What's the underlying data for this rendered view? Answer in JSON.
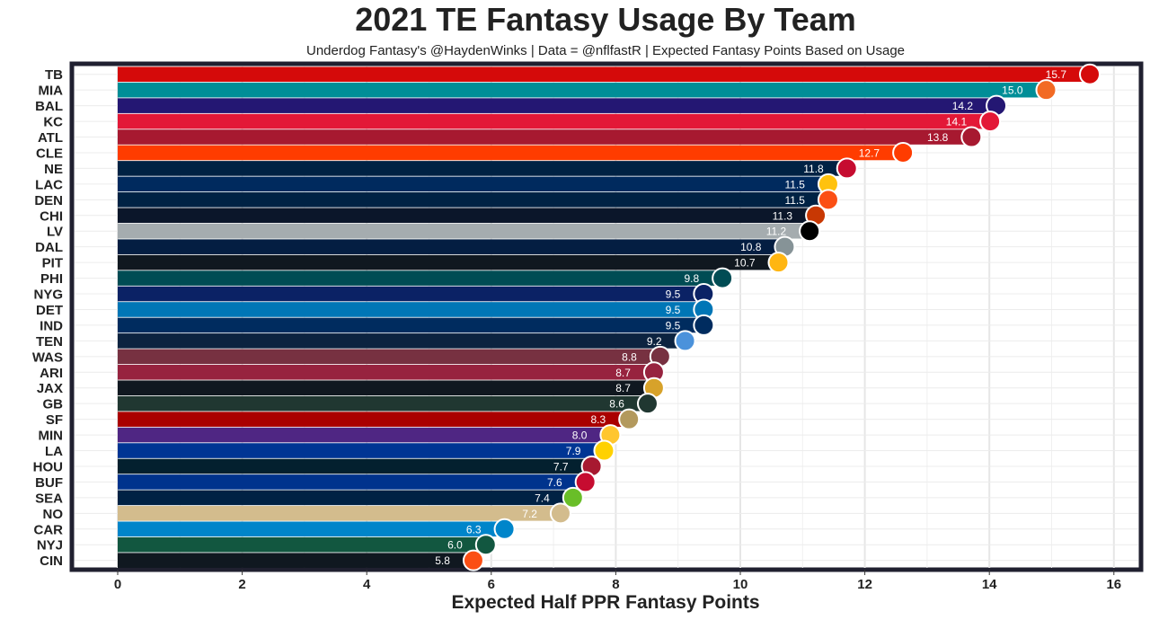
{
  "chart_data": {
    "type": "bar",
    "orientation": "horizontal",
    "title": "2021 TE Fantasy Usage By Team",
    "subtitle": "Underdog Fantasy's @HaydenWinks | Data = @nflfastR | Expected Fantasy Points Based on Usage",
    "xlabel": "Expected Half PPR Fantasy Points",
    "ylabel": "",
    "xlim": [
      0,
      16
    ],
    "xticks": [
      0,
      2,
      4,
      6,
      8,
      10,
      12,
      14,
      16
    ],
    "grid": true,
    "legend": "none",
    "categories": [
      "TB",
      "MIA",
      "BAL",
      "KC",
      "ATL",
      "CLE",
      "NE",
      "LAC",
      "DEN",
      "CHI",
      "LV",
      "DAL",
      "PIT",
      "PHI",
      "NYG",
      "DET",
      "IND",
      "TEN",
      "WAS",
      "ARI",
      "JAX",
      "GB",
      "SF",
      "MIN",
      "LA",
      "HOU",
      "BUF",
      "SEA",
      "NO",
      "CAR",
      "NYJ",
      "CIN"
    ],
    "values": [
      15.7,
      15.0,
      14.2,
      14.1,
      13.8,
      12.7,
      11.8,
      11.5,
      11.5,
      11.3,
      11.2,
      10.8,
      10.7,
      9.8,
      9.5,
      9.5,
      9.5,
      9.2,
      8.8,
      8.7,
      8.7,
      8.6,
      8.3,
      8.0,
      7.9,
      7.7,
      7.6,
      7.4,
      7.2,
      6.3,
      6.0,
      5.8
    ],
    "value_labels": [
      "15.7",
      "15.0",
      "14.2",
      "14.1",
      "13.8",
      "12.7",
      "11.8",
      "11.5",
      "11.5",
      "11.3",
      "11.2",
      "10.8",
      "10.7",
      "9.8",
      "9.5",
      "9.5",
      "9.5",
      "9.2",
      "8.8",
      "8.7",
      "8.7",
      "8.6",
      "8.3",
      "8.0",
      "7.9",
      "7.7",
      "7.6",
      "7.4",
      "7.2",
      "6.3",
      "6.0",
      "5.8"
    ],
    "colors": [
      "#D50A0A",
      "#008E97",
      "#241773",
      "#E31837",
      "#A71930",
      "#FF3C00",
      "#002244",
      "#002A5E",
      "#002244",
      "#0B162A",
      "#A5ACAF",
      "#041E42",
      "#101820",
      "#004C54",
      "#0B2265",
      "#0076B6",
      "#002C5F",
      "#0C2340",
      "#773141",
      "#97233F",
      "#101820",
      "#203731",
      "#AA0000",
      "#4F2683",
      "#003594",
      "#03202F",
      "#00338D",
      "#002244",
      "#D3BC8D",
      "#0085CA",
      "#125740",
      "#101820"
    ],
    "logo_colors": [
      "#D50A0A",
      "#F26A24",
      "#241773",
      "#E31837",
      "#A71930",
      "#FF3C00",
      "#C60C30",
      "#FFC20E",
      "#FB4F14",
      "#C83803",
      "#000000",
      "#869397",
      "#FFB612",
      "#004C54",
      "#0B2265",
      "#0076B6",
      "#002C5F",
      "#4B92DB",
      "#773141",
      "#97233F",
      "#D7A22A",
      "#203731",
      "#B3995D",
      "#FFC62F",
      "#FFD100",
      "#A71930",
      "#C60C30",
      "#69BE28",
      "#D3BC8D",
      "#0085CA",
      "#125740",
      "#FB4F14"
    ]
  }
}
